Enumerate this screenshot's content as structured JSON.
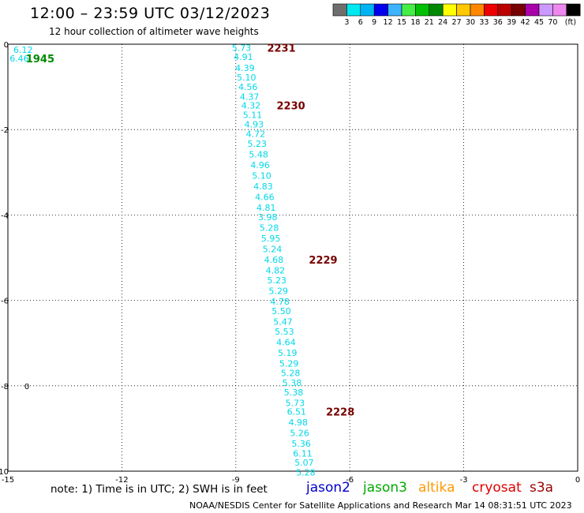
{
  "header": {
    "title": "12:00 – 23:59 UTC 03/12/2023",
    "subtitle": "12 hour collection of altimeter wave heights"
  },
  "colorbar": {
    "ticks": [
      "3",
      "6",
      "9",
      "12",
      "15",
      "18",
      "21",
      "24",
      "27",
      "30",
      "33",
      "36",
      "39",
      "42",
      "45",
      "70"
    ],
    "unit": "(ft)",
    "colors": [
      "#6e6e6e",
      "#00e8f0",
      "#00b4f4",
      "#0000ee",
      "#3cb4ff",
      "#44ee44",
      "#00c000",
      "#008800",
      "#ffff00",
      "#ffc800",
      "#ff8800",
      "#ee0000",
      "#bb0000",
      "#770000",
      "#aa00aa",
      "#cc99ff",
      "#ee88ee",
      "#000000"
    ]
  },
  "footer": {
    "note": "note:  1) Time is in UTC;  2) SWH is in feet",
    "credit": "NOAA/NESDIS Center for Satellite Applications and Research     Mar 14 08:31:51 UTC 2023",
    "satellites": [
      {
        "name": "jason2",
        "color": "#0000cc"
      },
      {
        "name": "jason3",
        "color": "#00aa00"
      },
      {
        "name": "altika",
        "color": "#ff9900"
      },
      {
        "name": "cryosat",
        "color": "#dd0000"
      },
      {
        "name": "s3a",
        "color": "#990000"
      }
    ]
  },
  "chart_data": {
    "type": "scatter",
    "title": "12:00 – 23:59 UTC 03/12/2023",
    "xlim": [
      -15,
      0
    ],
    "ylim": [
      -10,
      0
    ],
    "x_ticks": [
      "-15",
      "-12",
      "-9",
      "-6",
      "-3",
      "0"
    ],
    "y_ticks": [
      "0",
      "-2",
      "-4",
      "-6",
      "-8",
      "-10"
    ],
    "grid": true,
    "series": [
      {
        "name": "",
        "color": "#00d8e8",
        "points": [
          {
            "x": -14.6,
            "y": -0.13,
            "label": "6.12"
          },
          {
            "x": -14.7,
            "y": -0.33,
            "label": "6.46"
          },
          {
            "x": -8.85,
            "y": -0.08,
            "label": "5.73"
          },
          {
            "x": -8.8,
            "y": -0.3,
            "label": "4.91"
          },
          {
            "x": -8.76,
            "y": -0.55,
            "label": "4.39"
          },
          {
            "x": -8.72,
            "y": -0.78,
            "label": "5.10"
          },
          {
            "x": -8.68,
            "y": -1.0,
            "label": "4.56"
          },
          {
            "x": -8.64,
            "y": -1.23,
            "label": "4.37"
          },
          {
            "x": -8.6,
            "y": -1.43,
            "label": "4.32"
          },
          {
            "x": -8.56,
            "y": -1.65,
            "label": "5.11"
          },
          {
            "x": -8.52,
            "y": -1.88,
            "label": "4.93"
          },
          {
            "x": -8.48,
            "y": -2.1,
            "label": "4.72"
          },
          {
            "x": -8.44,
            "y": -2.33,
            "label": "5.23"
          },
          {
            "x": -8.4,
            "y": -2.58,
            "label": "5.48"
          },
          {
            "x": -8.36,
            "y": -2.83,
            "label": "4.96"
          },
          {
            "x": -8.32,
            "y": -3.08,
            "label": "5.10"
          },
          {
            "x": -8.28,
            "y": -3.33,
            "label": "4.83"
          },
          {
            "x": -8.24,
            "y": -3.58,
            "label": "4.66"
          },
          {
            "x": -8.2,
            "y": -3.83,
            "label": "4.81"
          },
          {
            "x": -8.16,
            "y": -4.05,
            "label": "3.98"
          },
          {
            "x": -8.12,
            "y": -4.3,
            "label": "5.28"
          },
          {
            "x": -8.08,
            "y": -4.55,
            "label": "5.95"
          },
          {
            "x": -8.04,
            "y": -4.8,
            "label": "5.24"
          },
          {
            "x": -8.0,
            "y": -5.05,
            "label": "4.68"
          },
          {
            "x": -7.96,
            "y": -5.3,
            "label": "4.82"
          },
          {
            "x": -7.92,
            "y": -5.53,
            "label": "5.23"
          },
          {
            "x": -7.88,
            "y": -5.78,
            "label": "5.29"
          },
          {
            "x": -7.84,
            "y": -6.03,
            "label": "4.78"
          },
          {
            "x": -7.8,
            "y": -6.25,
            "label": "5.50"
          },
          {
            "x": -7.76,
            "y": -6.5,
            "label": "5.47"
          },
          {
            "x": -7.72,
            "y": -6.73,
            "label": "5.53"
          },
          {
            "x": -7.68,
            "y": -6.98,
            "label": "4.64"
          },
          {
            "x": -7.64,
            "y": -7.23,
            "label": "5.19"
          },
          {
            "x": -7.6,
            "y": -7.48,
            "label": "5.29"
          },
          {
            "x": -7.56,
            "y": -7.7,
            "label": "5.28"
          },
          {
            "x": -7.52,
            "y": -7.93,
            "label": "5.38"
          },
          {
            "x": -7.48,
            "y": -8.15,
            "label": "5.38"
          },
          {
            "x": -7.44,
            "y": -8.4,
            "label": "5.73"
          },
          {
            "x": -7.4,
            "y": -8.6,
            "label": "6.51"
          },
          {
            "x": -7.36,
            "y": -8.85,
            "label": "4.98"
          },
          {
            "x": -7.32,
            "y": -9.1,
            "label": "5.26"
          },
          {
            "x": -7.28,
            "y": -9.35,
            "label": "5.36"
          },
          {
            "x": -7.24,
            "y": -9.58,
            "label": "6.11"
          },
          {
            "x": -7.2,
            "y": -9.8,
            "label": "5.07"
          },
          {
            "x": -7.16,
            "y": -10.03,
            "label": "5.28"
          }
        ]
      }
    ],
    "time_labels": [
      {
        "x": -14.15,
        "y": -0.33,
        "label": "1945",
        "color": "#008800"
      },
      {
        "x": -7.8,
        "y": -0.08,
        "label": "2231",
        "color": "#770000"
      },
      {
        "x": -7.55,
        "y": -1.43,
        "label": "2230",
        "color": "#770000"
      },
      {
        "x": -6.7,
        "y": -5.05,
        "label": "2229",
        "color": "#770000"
      },
      {
        "x": -6.25,
        "y": -8.6,
        "label": "2228",
        "color": "#770000"
      }
    ],
    "annotations": [
      {
        "x": -14.5,
        "y": -8.0,
        "label": "0"
      }
    ]
  }
}
